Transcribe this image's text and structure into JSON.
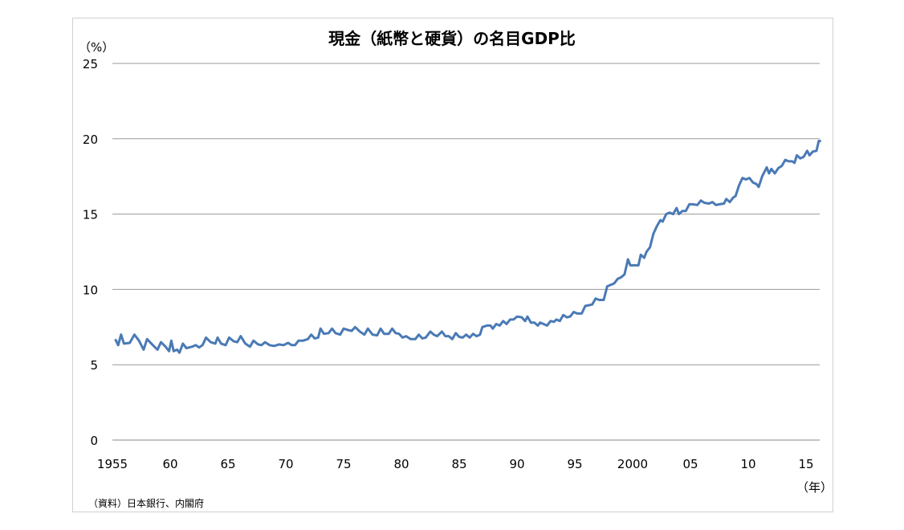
{
  "chart_data": {
    "type": "line",
    "title": "現金（紙幣と硬貨）の名目GDP比",
    "ylabel": "（%）",
    "xlabel": "（年）",
    "source": "（資料）日本銀行、内閣府",
    "ylim": [
      0,
      25
    ],
    "yticks": [
      0,
      5,
      10,
      15,
      20,
      25
    ],
    "xlim": [
      1955,
      2016.5
    ],
    "xticks": [
      1955,
      1960,
      1965,
      1970,
      1975,
      1980,
      1985,
      1990,
      1995,
      2000,
      2005,
      2010,
      2015
    ],
    "xtick_labels": [
      "1955",
      "60",
      "65",
      "70",
      "75",
      "80",
      "85",
      "90",
      "95",
      "2000",
      "05",
      "10",
      "15"
    ],
    "grid": "horizontal",
    "color": "#4a7ab5",
    "series": [
      {
        "x": [
          1955.25,
          1955.5,
          1955.75,
          1956.0,
          1956.5,
          1956.9,
          1957.3,
          1957.7,
          1958.0,
          1958.5,
          1958.9,
          1959.2,
          1959.6,
          1959.9,
          1960.1,
          1960.3,
          1960.6,
          1960.8,
          1961.1,
          1961.4,
          1961.9,
          1962.2,
          1962.5,
          1962.8,
          1963.1,
          1963.5,
          1963.9,
          1964.1,
          1964.4,
          1964.8,
          1965.1,
          1965.5,
          1965.8,
          1966.1,
          1966.5,
          1966.9,
          1967.2,
          1967.6,
          1967.9,
          1968.2,
          1968.6,
          1969.0,
          1969.4,
          1969.8,
          1970.2,
          1970.5,
          1970.8,
          1971.1,
          1971.5,
          1971.9,
          1972.2,
          1972.5,
          1972.8,
          1973.0,
          1973.3,
          1973.7,
          1974.0,
          1974.3,
          1974.7,
          1975.0,
          1975.4,
          1975.7,
          1976.0,
          1976.4,
          1976.8,
          1977.1,
          1977.5,
          1977.9,
          1978.2,
          1978.5,
          1978.9,
          1979.2,
          1979.5,
          1979.8,
          1980.1,
          1980.4,
          1980.8,
          1981.2,
          1981.5,
          1981.8,
          1982.1,
          1982.5,
          1982.8,
          1983.1,
          1983.5,
          1983.8,
          1984.1,
          1984.4,
          1984.7,
          1985.0,
          1985.3,
          1985.6,
          1985.9,
          1986.2,
          1986.5,
          1986.8,
          1987.0,
          1987.4,
          1987.7,
          1987.9,
          1988.2,
          1988.5,
          1988.8,
          1989.1,
          1989.4,
          1989.7,
          1990.0,
          1990.4,
          1990.7,
          1990.9,
          1991.2,
          1991.5,
          1991.8,
          1992.0,
          1992.3,
          1992.6,
          1992.9,
          1993.2,
          1993.4,
          1993.7,
          1994.0,
          1994.3,
          1994.6,
          1994.9,
          1995.2,
          1995.6,
          1995.9,
          1996.2,
          1996.5,
          1996.8,
          1997.1,
          1997.5,
          1997.8,
          1998.1,
          1998.4,
          1998.7,
          1999.0,
          1999.3,
          1999.6,
          1999.8,
          2000.2,
          2000.5,
          2000.7,
          2001.0,
          2001.2,
          2001.5,
          2001.8,
          2002.1,
          2002.4,
          2002.6,
          2002.9,
          2003.2,
          2003.5,
          2003.8,
          2004.0,
          2004.3,
          2004.6,
          2004.9,
          2005.2,
          2005.6,
          2005.9,
          2006.2,
          2006.6,
          2006.9,
          2007.2,
          2007.5,
          2007.9,
          2008.1,
          2008.4,
          2008.7,
          2008.9,
          2009.2,
          2009.5,
          2009.8,
          2010.1,
          2010.4,
          2010.7,
          2010.9,
          2011.2,
          2011.6,
          2011.8,
          2012.0,
          2012.3,
          2012.6,
          2012.9,
          2013.2,
          2013.5,
          2013.8,
          2014.0,
          2014.2,
          2014.5,
          2014.8,
          2015.1,
          2015.3,
          2015.6,
          2015.9,
          2016.1,
          2016.3
        ],
        "values": [
          6.7,
          6.3,
          7.0,
          6.4,
          6.45,
          7.0,
          6.6,
          6.0,
          6.7,
          6.3,
          6.0,
          6.5,
          6.2,
          5.9,
          6.6,
          5.9,
          6.0,
          5.8,
          6.4,
          6.1,
          6.2,
          6.3,
          6.15,
          6.3,
          6.8,
          6.5,
          6.4,
          6.8,
          6.4,
          6.3,
          6.8,
          6.55,
          6.5,
          6.9,
          6.4,
          6.2,
          6.6,
          6.35,
          6.3,
          6.5,
          6.3,
          6.25,
          6.35,
          6.3,
          6.45,
          6.3,
          6.3,
          6.6,
          6.6,
          6.7,
          7.0,
          6.75,
          6.8,
          7.4,
          7.05,
          7.1,
          7.4,
          7.1,
          7.0,
          7.4,
          7.3,
          7.25,
          7.5,
          7.2,
          7.0,
          7.4,
          7.0,
          6.95,
          7.4,
          7.05,
          7.05,
          7.4,
          7.1,
          7.05,
          6.8,
          6.9,
          6.7,
          6.7,
          7.0,
          6.75,
          6.8,
          7.2,
          7.0,
          6.9,
          7.2,
          6.9,
          6.9,
          6.7,
          7.1,
          6.85,
          6.8,
          7.0,
          6.8,
          7.05,
          6.9,
          7.0,
          7.5,
          7.6,
          7.6,
          7.4,
          7.7,
          7.6,
          7.9,
          7.7,
          8.0,
          8.0,
          8.2,
          8.15,
          7.9,
          8.2,
          7.8,
          7.8,
          7.6,
          7.8,
          7.7,
          7.6,
          7.9,
          7.85,
          8.0,
          7.9,
          8.3,
          8.15,
          8.2,
          8.5,
          8.4,
          8.4,
          8.9,
          8.95,
          9.0,
          9.4,
          9.3,
          9.3,
          10.2,
          10.3,
          10.4,
          10.7,
          10.8,
          11.0,
          12.0,
          11.6,
          11.6,
          11.6,
          12.3,
          12.1,
          12.5,
          12.8,
          13.7,
          14.2,
          14.6,
          14.5,
          15.0,
          15.1,
          15.0,
          15.4,
          15.0,
          15.2,
          15.2,
          15.65,
          15.65,
          15.6,
          15.9,
          15.75,
          15.7,
          15.8,
          15.6,
          15.65,
          15.7,
          16.0,
          15.8,
          16.1,
          16.2,
          16.9,
          17.4,
          17.3,
          17.4,
          17.1,
          17.0,
          16.8,
          17.5,
          18.1,
          17.7,
          18.0,
          17.7,
          18.05,
          18.2,
          18.6,
          18.5,
          18.5,
          18.4,
          18.9,
          18.7,
          18.8,
          19.2,
          18.9,
          19.15,
          19.2,
          19.85,
          19.85
        ]
      }
    ]
  }
}
